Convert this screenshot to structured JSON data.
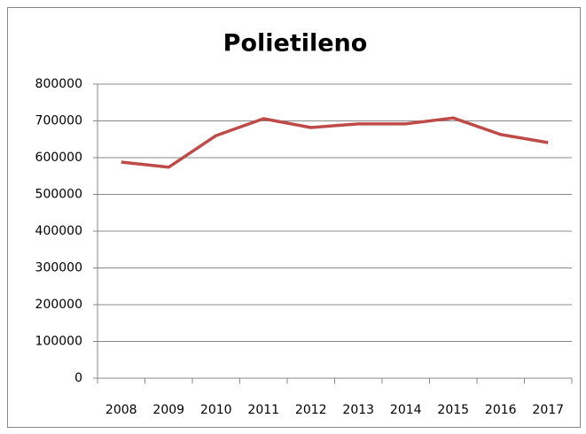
{
  "chart_data": {
    "type": "line",
    "title": "Polietileno",
    "categories": [
      "2008",
      "2009",
      "2010",
      "2011",
      "2012",
      "2013",
      "2014",
      "2015",
      "2016",
      "2017"
    ],
    "values": [
      588000,
      574000,
      660000,
      706000,
      682000,
      692000,
      692000,
      708000,
      663000,
      641000
    ],
    "color": "#be4b48",
    "ylim": [
      0,
      800000
    ],
    "yticks": [
      0,
      100000,
      200000,
      300000,
      400000,
      500000,
      600000,
      700000,
      800000
    ],
    "grid": true
  }
}
